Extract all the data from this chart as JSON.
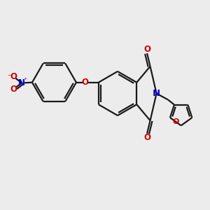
{
  "bg_color": "#ececec",
  "bond_color": "#1a1a1a",
  "n_color": "#0000cc",
  "o_color": "#cc0000",
  "line_width": 1.6,
  "font_size": 8.5,
  "fig_size": [
    3.0,
    3.0
  ],
  "dpi": 100,
  "xlim": [
    -1.0,
    9.0
  ],
  "ylim": [
    -1.0,
    9.0
  ]
}
